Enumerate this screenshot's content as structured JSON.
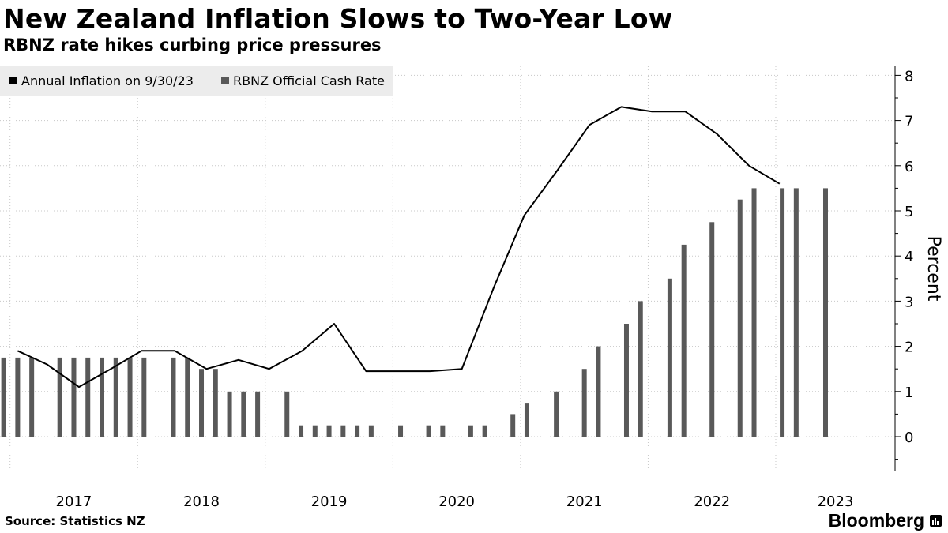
{
  "colors": {
    "background": "#ffffff",
    "bars": "#595959",
    "line": "#000000",
    "grid": "#c8c8c8",
    "legend_bg": "#ececec"
  },
  "brand": {
    "name": "Bloomberg",
    "icon": "bloomberg-terminal-icon"
  },
  "source": "Source: Statistics NZ",
  "chart_data": {
    "type": "bar+line",
    "title": "New Zealand Inflation Slows to Two-Year Low",
    "subtitle": "RBNZ rate hikes curbing price pressures",
    "ylabel": "Percent",
    "ylim": [
      -0.7,
      8.3
    ],
    "yticks": [
      0,
      1,
      2,
      3,
      4,
      5,
      6,
      7,
      8
    ],
    "xlim": [
      2016.94,
      2023.78
    ],
    "grid": true,
    "legend_position": "top-left",
    "year_ticks": [
      2017,
      2018,
      2019,
      2020,
      2021,
      2022,
      2023
    ],
    "x_tick_labels": [
      "2017",
      "2018",
      "2019",
      "2020",
      "2021",
      "2022",
      "2023"
    ],
    "series": [
      {
        "name": "Annual Inflation on 9/30/23",
        "kind": "line",
        "points": [
          [
            2017.06,
            1.9
          ],
          [
            2017.29,
            1.6
          ],
          [
            2017.54,
            1.1
          ],
          [
            2017.79,
            1.5
          ],
          [
            2018.03,
            1.9
          ],
          [
            2018.29,
            1.9
          ],
          [
            2018.54,
            1.5
          ],
          [
            2018.79,
            1.7
          ],
          [
            2019.03,
            1.5
          ],
          [
            2019.29,
            1.9
          ],
          [
            2019.54,
            2.5
          ],
          [
            2019.79,
            1.45
          ],
          [
            2020.03,
            1.45
          ],
          [
            2020.29,
            1.45
          ],
          [
            2020.54,
            1.5
          ],
          [
            2020.79,
            3.3
          ],
          [
            2021.03,
            4.9
          ],
          [
            2021.29,
            5.9
          ],
          [
            2021.54,
            6.9
          ],
          [
            2021.79,
            7.3
          ],
          [
            2022.03,
            7.2
          ],
          [
            2022.29,
            7.2
          ],
          [
            2022.54,
            6.7
          ],
          [
            2022.79,
            6.0
          ],
          [
            2023.03,
            5.6
          ]
        ]
      },
      {
        "name": "RBNZ Official Cash Rate",
        "kind": "bar",
        "points": [
          [
            2016.95,
            1.75
          ],
          [
            2017.06,
            1.75
          ],
          [
            2017.17,
            1.75
          ],
          [
            2017.39,
            1.75
          ],
          [
            2017.5,
            1.75
          ],
          [
            2017.61,
            1.75
          ],
          [
            2017.72,
            1.75
          ],
          [
            2017.83,
            1.75
          ],
          [
            2017.94,
            1.75
          ],
          [
            2018.05,
            1.75
          ],
          [
            2018.28,
            1.75
          ],
          [
            2018.39,
            1.75
          ],
          [
            2018.5,
            1.5
          ],
          [
            2018.61,
            1.5
          ],
          [
            2018.72,
            1.0
          ],
          [
            2018.83,
            1.0
          ],
          [
            2018.94,
            1.0
          ],
          [
            2019.17,
            1.0
          ],
          [
            2019.28,
            0.25
          ],
          [
            2019.39,
            0.25
          ],
          [
            2019.5,
            0.25
          ],
          [
            2019.61,
            0.25
          ],
          [
            2019.72,
            0.25
          ],
          [
            2019.83,
            0.25
          ],
          [
            2020.06,
            0.25
          ],
          [
            2020.28,
            0.25
          ],
          [
            2020.39,
            0.25
          ],
          [
            2020.61,
            0.25
          ],
          [
            2020.72,
            0.25
          ],
          [
            2020.94,
            0.5
          ],
          [
            2021.05,
            0.75
          ],
          [
            2021.28,
            1.0
          ],
          [
            2021.5,
            1.5
          ],
          [
            2021.61,
            2.0
          ],
          [
            2021.83,
            2.5
          ],
          [
            2021.94,
            3.0
          ],
          [
            2022.17,
            3.5
          ],
          [
            2022.28,
            4.25
          ],
          [
            2022.5,
            4.75
          ],
          [
            2022.72,
            5.25
          ],
          [
            2022.83,
            5.5
          ],
          [
            2023.05,
            5.5
          ],
          [
            2023.16,
            5.5
          ],
          [
            2023.39,
            5.5
          ]
        ]
      }
    ]
  }
}
